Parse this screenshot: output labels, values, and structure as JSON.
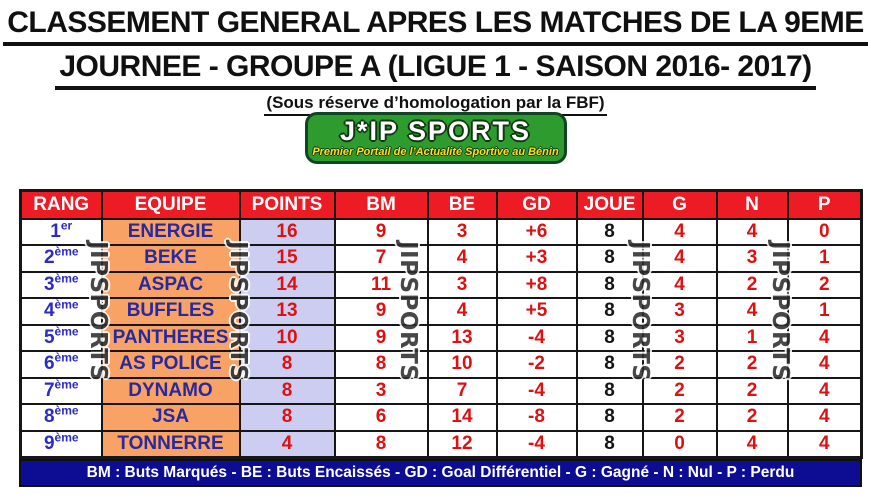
{
  "title": {
    "line1": "CLASSEMENT GENERAL APRES LES MATCHES DE LA 9EME",
    "line2": "JOURNEE - GROUPE A (LIGUE 1 - SAISON 2016- 2017)",
    "line3": "(Sous réserve d’homologation par la FBF)"
  },
  "logo": {
    "name": "J*IP SPORTS",
    "tagline": "Premier Portail de l’Actualité Sportive au Bénin"
  },
  "watermark": {
    "text": "JIPSPORTS"
  },
  "table": {
    "headers": [
      "RANG",
      "EQUIPE",
      "POINTS",
      "BM",
      "BE",
      "GD",
      "JOUE",
      "G",
      "N",
      "P"
    ],
    "rows": [
      {
        "rank": "1",
        "rank_suffix": "er",
        "team": "ENERGIE",
        "points": "16",
        "bm": "9",
        "be": "3",
        "gd": "+6",
        "joue": "8",
        "g": "4",
        "n": "4",
        "p": "0"
      },
      {
        "rank": "2",
        "rank_suffix": "ème",
        "team": "BEKE",
        "points": "15",
        "bm": "7",
        "be": "4",
        "gd": "+3",
        "joue": "8",
        "g": "4",
        "n": "3",
        "p": "1"
      },
      {
        "rank": "3",
        "rank_suffix": "ème",
        "team": "ASPAC",
        "points": "14",
        "bm": "11",
        "be": "3",
        "gd": "+8",
        "joue": "8",
        "g": "4",
        "n": "2",
        "p": "2"
      },
      {
        "rank": "4",
        "rank_suffix": "ème",
        "team": "BUFFLES",
        "points": "13",
        "bm": "9",
        "be": "4",
        "gd": "+5",
        "joue": "8",
        "g": "3",
        "n": "4",
        "p": "1"
      },
      {
        "rank": "5",
        "rank_suffix": "ème",
        "team": "PANTHERES",
        "points": "10",
        "bm": "9",
        "be": "13",
        "gd": "-4",
        "joue": "8",
        "g": "3",
        "n": "1",
        "p": "4"
      },
      {
        "rank": "6",
        "rank_suffix": "ème",
        "team": "AS POLICE",
        "points": "8",
        "bm": "8",
        "be": "10",
        "gd": "-2",
        "joue": "8",
        "g": "2",
        "n": "2",
        "p": "4"
      },
      {
        "rank": "7",
        "rank_suffix": "ème",
        "team": "DYNAMO",
        "points": "8",
        "bm": "3",
        "be": "7",
        "gd": "-4",
        "joue": "8",
        "g": "2",
        "n": "2",
        "p": "4"
      },
      {
        "rank": "8",
        "rank_suffix": "ème",
        "team": "JSA",
        "points": "8",
        "bm": "6",
        "be": "14",
        "gd": "-8",
        "joue": "8",
        "g": "2",
        "n": "2",
        "p": "4"
      },
      {
        "rank": "9",
        "rank_suffix": "ème",
        "team": "TONNERRE",
        "points": "4",
        "bm": "8",
        "be": "12",
        "gd": "-4",
        "joue": "8",
        "g": "0",
        "n": "4",
        "p": "4"
      }
    ]
  },
  "footer": {
    "legend": "BM : Buts Marqués -  BE : Buts Encaissés -  GD : Goal Différentiel -  G : Gagné - N : Nul - P : Perdu"
  },
  "colors": {
    "header_bg": "#EC1B24",
    "header_text": "#FFFFFF",
    "team_bg": "#F8A265",
    "points_bg": "#CDCDF1",
    "rank_text": "#2B2BC8",
    "team_text": "#29299E",
    "value_red": "#DD1111",
    "value_black": "#141414",
    "footer_bg": "#0D0D93",
    "footer_text": "#FFFFFF",
    "logo_green": "#2E9B2E",
    "logo_tagline": "#FFE11A",
    "border": "#161616"
  },
  "chart_data": {
    "type": "table",
    "title": "CLASSEMENT GENERAL APRES LES MATCHES DE LA 9EME JOURNEE - GROUPE A (LIGUE 1 - SAISON 2016- 2017)",
    "subtitle": "(Sous réserve d’homologation par la FBF)",
    "columns": [
      "RANG",
      "EQUIPE",
      "POINTS",
      "BM",
      "BE",
      "GD",
      "JOUE",
      "G",
      "N",
      "P"
    ],
    "rows": [
      [
        "1er",
        "ENERGIE",
        16,
        9,
        3,
        "+6",
        8,
        4,
        4,
        0
      ],
      [
        "2ème",
        "BEKE",
        15,
        7,
        4,
        "+3",
        8,
        4,
        3,
        1
      ],
      [
        "3ème",
        "ASPAC",
        14,
        11,
        3,
        "+8",
        8,
        4,
        2,
        2
      ],
      [
        "4ème",
        "BUFFLES",
        13,
        9,
        4,
        "+5",
        8,
        3,
        4,
        1
      ],
      [
        "5ème",
        "PANTHERES",
        10,
        9,
        13,
        "-4",
        8,
        3,
        1,
        4
      ],
      [
        "6ème",
        "AS POLICE",
        8,
        8,
        10,
        "-2",
        8,
        2,
        2,
        4
      ],
      [
        "7ème",
        "DYNAMO",
        8,
        3,
        7,
        "-4",
        8,
        2,
        2,
        4
      ],
      [
        "8ème",
        "JSA",
        8,
        6,
        14,
        "-8",
        8,
        2,
        2,
        4
      ],
      [
        "9ème",
        "TONNERRE",
        4,
        8,
        12,
        "-4",
        8,
        0,
        4,
        4
      ]
    ],
    "legend": "BM : Buts Marqués - BE : Buts Encaissés - GD : Goal Différentiel - G : Gagné - N : Nul - P : Perdu"
  }
}
